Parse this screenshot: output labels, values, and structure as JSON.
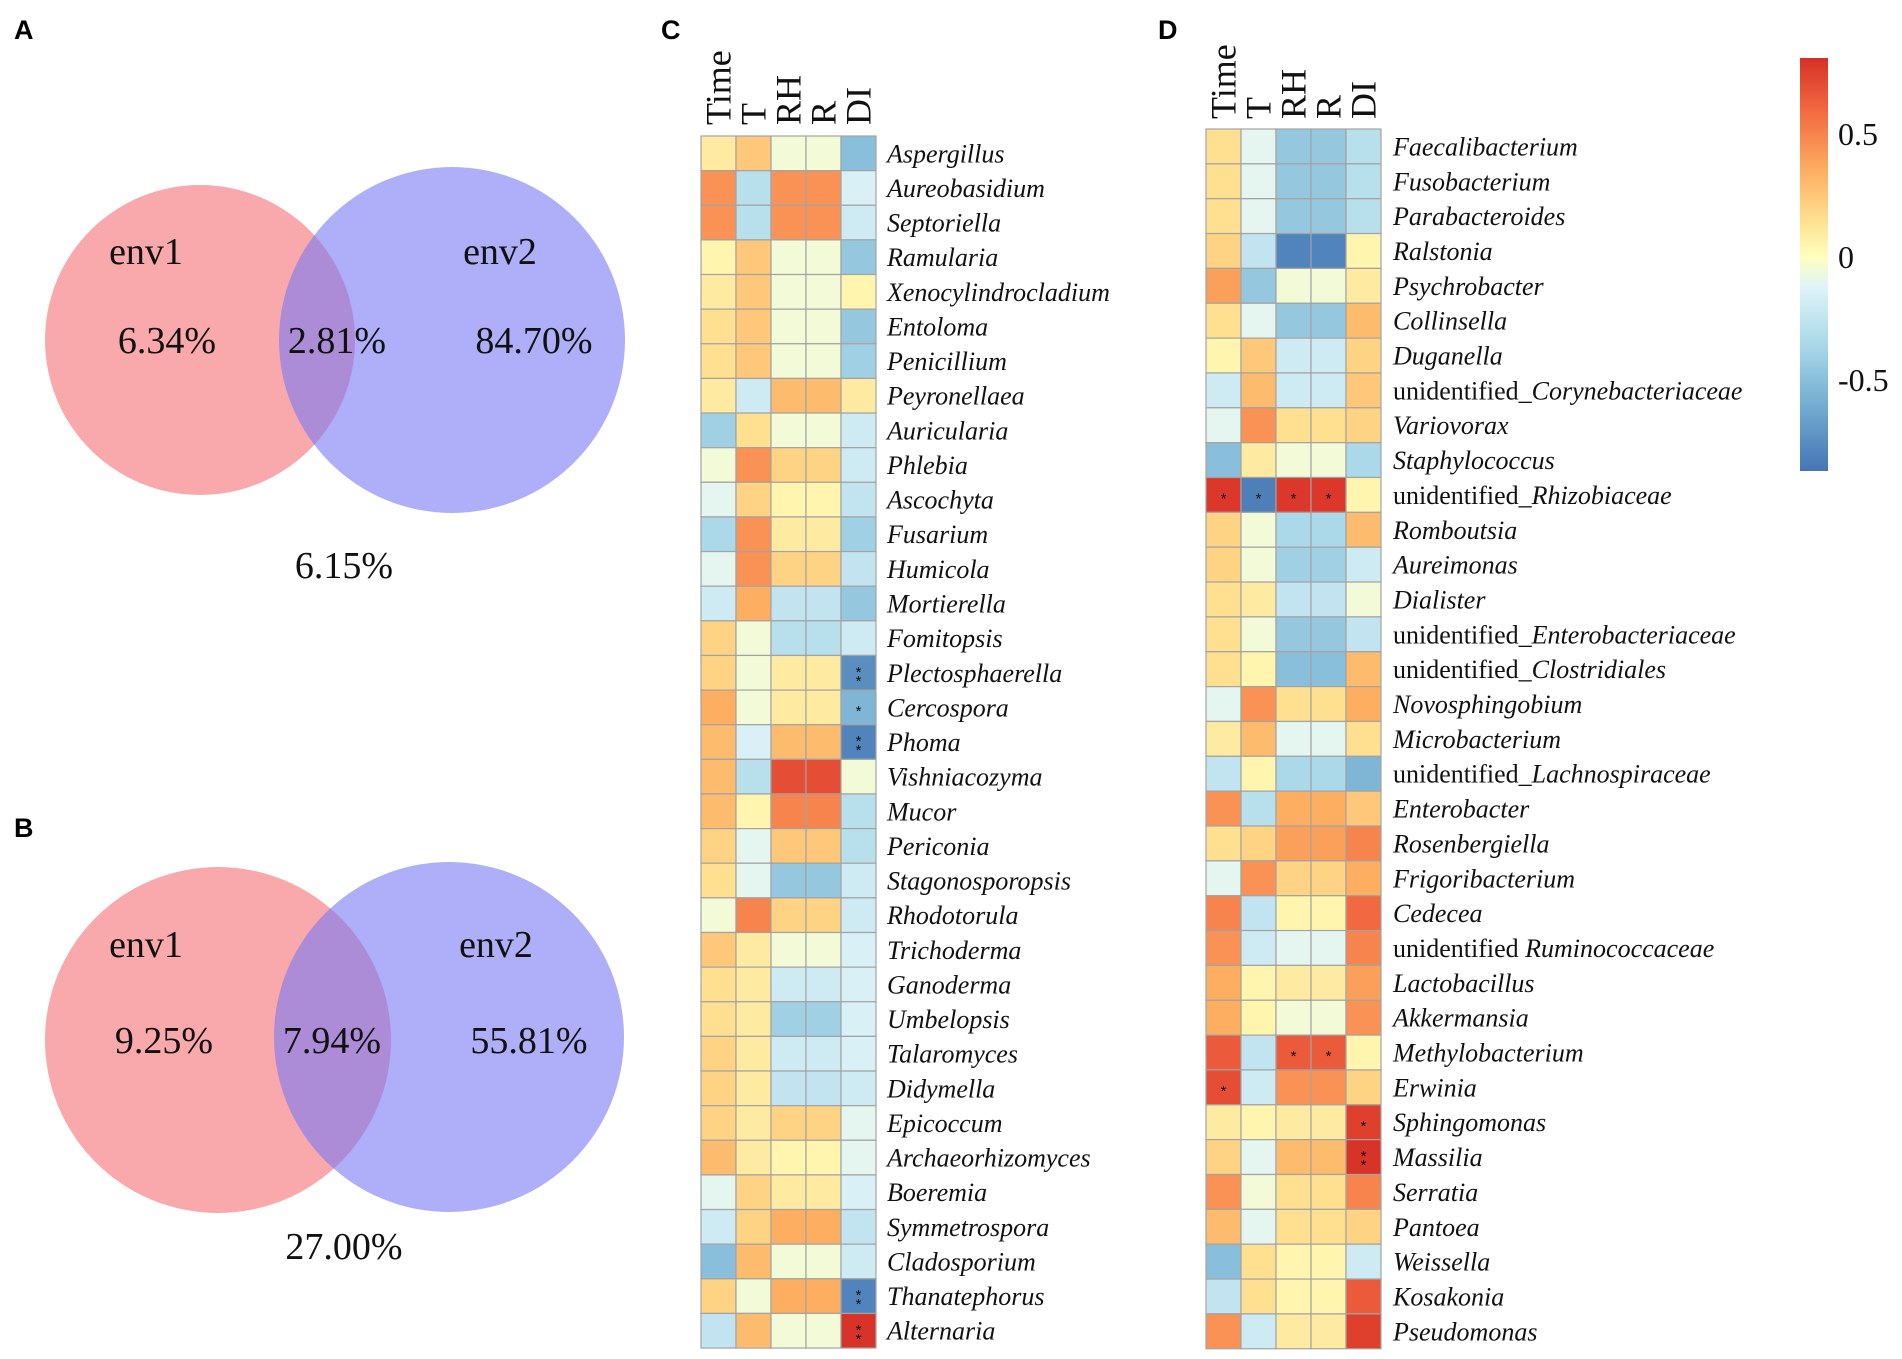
{
  "colors": {
    "env1": "#f56e73",
    "env2": "#7878f5",
    "grid": "#a3a3a3"
  },
  "chart_data": [
    {
      "panel": "A",
      "type": "venn",
      "sets": [
        "env1",
        "env2"
      ],
      "env1_only": "6.34%",
      "shared": "2.81%",
      "env2_only": "84.70%",
      "outside": "6.15%"
    },
    {
      "panel": "B",
      "type": "venn",
      "sets": [
        "env1",
        "env2"
      ],
      "env1_only": "9.25%",
      "shared": "7.94%",
      "env2_only": "55.81%",
      "outside": "27.00%"
    },
    {
      "panel": "C",
      "type": "heatmap",
      "columns": [
        "Time",
        "T",
        "RH",
        "R",
        "DI"
      ],
      "rows": [
        {
          "label": "Aspergillus",
          "values": [
            0.1,
            0.25,
            -0.05,
            -0.05,
            -0.5
          ]
        },
        {
          "label": "Aureobasidium",
          "values": [
            0.45,
            -0.3,
            0.45,
            0.45,
            -0.15
          ]
        },
        {
          "label": "Septoriella",
          "values": [
            0.45,
            -0.3,
            0.45,
            0.45,
            -0.2
          ]
        },
        {
          "label": "Ramularia",
          "values": [
            0.05,
            0.25,
            -0.05,
            -0.05,
            -0.45
          ]
        },
        {
          "label": "Xenocylindrocladium",
          "values": [
            0.1,
            0.25,
            -0.05,
            -0.05,
            0.05
          ]
        },
        {
          "label": "Entoloma",
          "values": [
            0.15,
            0.25,
            -0.05,
            -0.05,
            -0.45
          ]
        },
        {
          "label": "Penicillium",
          "values": [
            0.15,
            0.25,
            -0.05,
            -0.05,
            -0.4
          ]
        },
        {
          "label": "Peyronellaea",
          "values": [
            0.1,
            -0.2,
            0.3,
            0.3,
            0.1
          ]
        },
        {
          "label": "Auricularia",
          "values": [
            -0.4,
            0.15,
            -0.05,
            -0.05,
            -0.2
          ]
        },
        {
          "label": "Phlebia",
          "values": [
            -0.05,
            0.45,
            0.2,
            0.2,
            -0.2
          ]
        },
        {
          "label": "Ascochyta",
          "values": [
            -0.1,
            0.2,
            0.05,
            0.05,
            -0.25
          ]
        },
        {
          "label": "Fusarium",
          "values": [
            -0.35,
            0.45,
            0.1,
            0.1,
            -0.4
          ]
        },
        {
          "label": "Humicola",
          "values": [
            -0.1,
            0.45,
            0.2,
            0.2,
            -0.25
          ]
        },
        {
          "label": "Mortierella",
          "values": [
            -0.2,
            0.35,
            -0.25,
            -0.25,
            -0.45
          ]
        },
        {
          "label": "Fomitopsis",
          "values": [
            0.2,
            -0.05,
            -0.3,
            -0.3,
            -0.2
          ]
        },
        {
          "label": "Plectosphaerella",
          "values": [
            0.2,
            -0.05,
            0.1,
            0.1,
            -0.75
          ],
          "sig": [
            "",
            "",
            "",
            "",
            "**"
          ]
        },
        {
          "label": "Cercospora",
          "values": [
            0.35,
            -0.05,
            0.1,
            0.1,
            -0.55
          ],
          "sig": [
            "",
            "",
            "",
            "",
            "*"
          ]
        },
        {
          "label": "Phoma",
          "values": [
            0.3,
            -0.15,
            0.3,
            0.3,
            -0.8
          ],
          "sig": [
            "",
            "",
            "",
            "",
            "**"
          ]
        },
        {
          "label": "Vishniacozyma",
          "values": [
            0.3,
            -0.3,
            0.7,
            0.7,
            -0.05
          ]
        },
        {
          "label": "Mucor",
          "values": [
            0.3,
            0.05,
            0.5,
            0.5,
            -0.3
          ]
        },
        {
          "label": "Periconia",
          "values": [
            0.2,
            -0.1,
            0.25,
            0.25,
            -0.3
          ]
        },
        {
          "label": "Stagonosporopsis",
          "values": [
            0.15,
            -0.1,
            -0.45,
            -0.45,
            -0.2
          ]
        },
        {
          "label": "Rhodotorula",
          "values": [
            -0.05,
            0.5,
            0.2,
            0.2,
            -0.2
          ]
        },
        {
          "label": "Trichoderma",
          "values": [
            0.25,
            0.1,
            -0.05,
            -0.05,
            -0.15
          ]
        },
        {
          "label": "Ganoderma",
          "values": [
            0.15,
            0.1,
            -0.2,
            -0.2,
            -0.15
          ]
        },
        {
          "label": "Umbelopsis",
          "values": [
            0.15,
            0.1,
            -0.4,
            -0.4,
            -0.15
          ]
        },
        {
          "label": "Talaromyces",
          "values": [
            0.2,
            0.1,
            -0.2,
            -0.2,
            -0.15
          ]
        },
        {
          "label": "Didymella",
          "values": [
            0.2,
            0.1,
            -0.25,
            -0.25,
            -0.2
          ]
        },
        {
          "label": "Epicoccum",
          "values": [
            0.2,
            0.1,
            0.2,
            0.2,
            -0.1
          ]
        },
        {
          "label": "Archaeorhizomyces",
          "values": [
            0.3,
            0.1,
            0.05,
            0.05,
            -0.1
          ]
        },
        {
          "label": "Boeremia",
          "values": [
            -0.1,
            0.2,
            0.1,
            0.1,
            -0.15
          ]
        },
        {
          "label": "Symmetrospora",
          "values": [
            -0.2,
            0.2,
            0.35,
            0.35,
            -0.25
          ]
        },
        {
          "label": "Cladosporium",
          "values": [
            -0.5,
            0.3,
            -0.05,
            -0.05,
            -0.2
          ]
        },
        {
          "label": "Thanatephorus",
          "values": [
            0.2,
            -0.05,
            0.35,
            0.35,
            -0.8
          ],
          "sig": [
            "",
            "",
            "",
            "",
            "**"
          ]
        },
        {
          "label": "Alternaria",
          "values": [
            -0.25,
            0.3,
            -0.05,
            -0.05,
            0.8
          ],
          "sig": [
            "",
            "",
            "",
            "",
            "**"
          ]
        }
      ]
    },
    {
      "panel": "D",
      "type": "heatmap",
      "columns": [
        "Time",
        "T",
        "RH",
        "R",
        "DI"
      ],
      "rows": [
        {
          "label": "Faecalibacterium",
          "values": [
            0.15,
            -0.1,
            -0.45,
            -0.45,
            -0.3
          ]
        },
        {
          "label": "Fusobacterium",
          "values": [
            0.15,
            -0.1,
            -0.45,
            -0.45,
            -0.3
          ]
        },
        {
          "label": "Parabacteroides",
          "values": [
            0.15,
            -0.1,
            -0.45,
            -0.45,
            -0.3
          ]
        },
        {
          "label": "Ralstonia",
          "values": [
            0.2,
            -0.25,
            -0.8,
            -0.8,
            0.05
          ]
        },
        {
          "label": "Psychrobacter",
          "values": [
            0.4,
            -0.45,
            -0.05,
            -0.05,
            0.1
          ]
        },
        {
          "label": "Collinsella",
          "values": [
            0.15,
            -0.1,
            -0.45,
            -0.45,
            0.3
          ]
        },
        {
          "label": "Duganella",
          "values": [
            0.05,
            0.25,
            -0.2,
            -0.2,
            0.2
          ]
        },
        {
          "prefix": "unidentified_",
          "label": "Corynebacteriaceae",
          "values": [
            -0.2,
            0.3,
            -0.2,
            -0.2,
            0.25
          ]
        },
        {
          "label": "Variovorax",
          "values": [
            -0.1,
            0.45,
            0.15,
            0.15,
            0.2
          ]
        },
        {
          "label": "Staphylococcus",
          "values": [
            -0.5,
            0.1,
            -0.05,
            -0.05,
            -0.35
          ]
        },
        {
          "prefix": "unidentified_",
          "label": "Rhizobiaceae",
          "values": [
            0.78,
            -0.82,
            0.78,
            0.78,
            0.05
          ],
          "sig": [
            "*",
            "*",
            "*",
            "*",
            ""
          ]
        },
        {
          "label": "Romboutsia",
          "values": [
            0.2,
            -0.05,
            -0.35,
            -0.35,
            0.3
          ]
        },
        {
          "label": "Aureimonas",
          "values": [
            0.2,
            -0.05,
            -0.4,
            -0.4,
            -0.2
          ]
        },
        {
          "label": "Dialister",
          "values": [
            0.15,
            0.1,
            -0.25,
            -0.25,
            -0.05
          ]
        },
        {
          "prefix": "unidentified_",
          "label": "Enterobacteriaceae",
          "values": [
            0.15,
            -0.05,
            -0.45,
            -0.45,
            -0.25
          ]
        },
        {
          "prefix": "unidentified_",
          "label": "Clostridiales",
          "values": [
            0.15,
            0.05,
            -0.5,
            -0.5,
            0.3
          ]
        },
        {
          "label": "Novosphingobium",
          "values": [
            -0.1,
            0.45,
            0.15,
            0.15,
            0.35
          ]
        },
        {
          "label": "Microbacterium",
          "values": [
            0.1,
            0.3,
            -0.1,
            -0.1,
            0.15
          ]
        },
        {
          "prefix": "unidentified_",
          "label": "Lachnospiraceae",
          "values": [
            -0.25,
            0.05,
            -0.35,
            -0.35,
            -0.55
          ]
        },
        {
          "label": "Enterobacter",
          "values": [
            0.45,
            -0.3,
            0.35,
            0.35,
            0.25
          ]
        },
        {
          "label": "Rosenbergiella",
          "values": [
            0.15,
            0.2,
            0.4,
            0.4,
            0.5
          ]
        },
        {
          "label": "Frigoribacterium",
          "values": [
            -0.1,
            0.45,
            0.2,
            0.2,
            0.35
          ]
        },
        {
          "label": "Cedecea",
          "values": [
            0.5,
            -0.25,
            0.05,
            0.05,
            0.6
          ]
        },
        {
          "prefix": "unidentified ",
          "label": "Ruminococcaceae",
          "values": [
            0.45,
            -0.2,
            -0.1,
            -0.1,
            0.5
          ]
        },
        {
          "label": "Lactobacillus",
          "values": [
            0.35,
            0.05,
            0.1,
            0.1,
            0.4
          ]
        },
        {
          "label": "Akkermansia",
          "values": [
            0.35,
            0.05,
            -0.05,
            -0.05,
            0.45
          ]
        },
        {
          "label": "Methylobacterium",
          "values": [
            0.65,
            -0.25,
            0.65,
            0.65,
            0.05
          ],
          "sig": [
            "",
            "",
            "*",
            "*",
            ""
          ]
        },
        {
          "label": "Erwinia",
          "values": [
            0.7,
            -0.2,
            0.45,
            0.45,
            0.2
          ],
          "sig": [
            "*",
            "",
            "",
            "",
            ""
          ]
        },
        {
          "label": "Sphingomonas",
          "values": [
            0.1,
            0.05,
            0.1,
            0.1,
            0.75
          ],
          "sig": [
            "",
            "",
            "",
            "",
            "*"
          ]
        },
        {
          "label": "Massilia",
          "values": [
            0.2,
            -0.1,
            0.3,
            0.3,
            0.8
          ],
          "sig": [
            "",
            "",
            "",
            "",
            "**"
          ]
        },
        {
          "label": "Serratia",
          "values": [
            0.45,
            -0.05,
            0.15,
            0.15,
            0.5
          ]
        },
        {
          "label": "Pantoea",
          "values": [
            0.3,
            -0.1,
            0.15,
            0.15,
            0.2
          ]
        },
        {
          "label": "Weissella",
          "values": [
            -0.5,
            0.15,
            0.05,
            0.05,
            -0.2
          ]
        },
        {
          "label": "Kosakonia",
          "values": [
            -0.25,
            0.15,
            0.05,
            0.05,
            0.65
          ]
        },
        {
          "label": "Pseudomonas",
          "values": [
            0.45,
            -0.2,
            0.1,
            0.1,
            0.75
          ]
        }
      ]
    },
    {
      "type": "colorbar",
      "min": -0.87,
      "max": 0.81,
      "ticks": [
        {
          "value": 0.5,
          "label": "0.5"
        },
        {
          "value": 0,
          "label": "0"
        },
        {
          "value": -0.5,
          "label": "-0.5"
        }
      ],
      "stops": [
        {
          "value": -0.87,
          "color": "#4575b4"
        },
        {
          "value": -0.6,
          "color": "#74add1"
        },
        {
          "value": -0.35,
          "color": "#abd9e9"
        },
        {
          "value": -0.12,
          "color": "#e0f3f8"
        },
        {
          "value": 0,
          "color": "#ffffbf"
        },
        {
          "value": 0.15,
          "color": "#fee090"
        },
        {
          "value": 0.35,
          "color": "#fdae61"
        },
        {
          "value": 0.58,
          "color": "#f46d43"
        },
        {
          "value": 0.81,
          "color": "#d73027"
        }
      ]
    }
  ]
}
